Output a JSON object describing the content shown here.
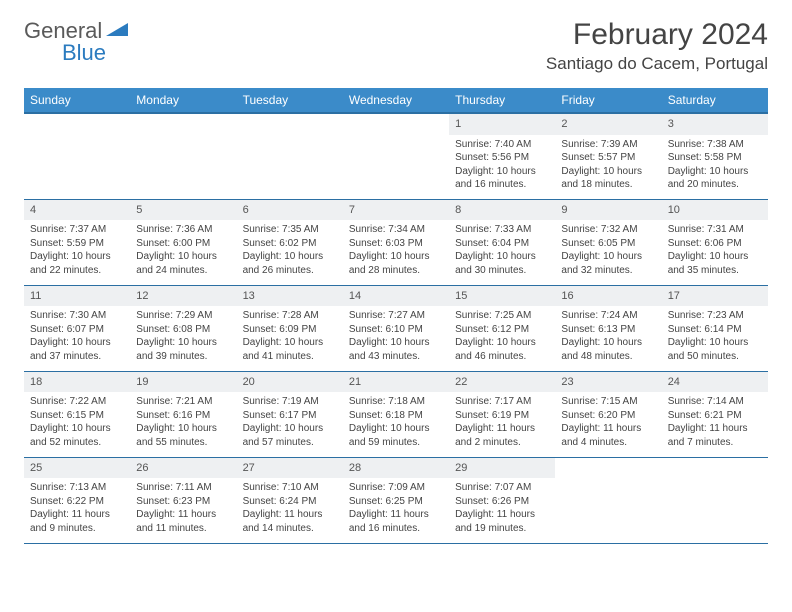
{
  "logo": {
    "general": "General",
    "blue": "Blue"
  },
  "title": "February 2024",
  "location": "Santiago do Cacem, Portugal",
  "weekdays": [
    "Sunday",
    "Monday",
    "Tuesday",
    "Wednesday",
    "Thursday",
    "Friday",
    "Saturday"
  ],
  "colors": {
    "header_bg": "#3b8bc9",
    "header_border": "#2b6fa3",
    "daynum_bg": "#eef0f2",
    "logo_blue": "#2b7bbf",
    "logo_gray": "#5a5a5a"
  },
  "weeks": [
    [
      null,
      null,
      null,
      null,
      {
        "n": "1",
        "sunrise": "Sunrise: 7:40 AM",
        "sunset": "Sunset: 5:56 PM",
        "daylight": "Daylight: 10 hours and 16 minutes."
      },
      {
        "n": "2",
        "sunrise": "Sunrise: 7:39 AM",
        "sunset": "Sunset: 5:57 PM",
        "daylight": "Daylight: 10 hours and 18 minutes."
      },
      {
        "n": "3",
        "sunrise": "Sunrise: 7:38 AM",
        "sunset": "Sunset: 5:58 PM",
        "daylight": "Daylight: 10 hours and 20 minutes."
      }
    ],
    [
      {
        "n": "4",
        "sunrise": "Sunrise: 7:37 AM",
        "sunset": "Sunset: 5:59 PM",
        "daylight": "Daylight: 10 hours and 22 minutes."
      },
      {
        "n": "5",
        "sunrise": "Sunrise: 7:36 AM",
        "sunset": "Sunset: 6:00 PM",
        "daylight": "Daylight: 10 hours and 24 minutes."
      },
      {
        "n": "6",
        "sunrise": "Sunrise: 7:35 AM",
        "sunset": "Sunset: 6:02 PM",
        "daylight": "Daylight: 10 hours and 26 minutes."
      },
      {
        "n": "7",
        "sunrise": "Sunrise: 7:34 AM",
        "sunset": "Sunset: 6:03 PM",
        "daylight": "Daylight: 10 hours and 28 minutes."
      },
      {
        "n": "8",
        "sunrise": "Sunrise: 7:33 AM",
        "sunset": "Sunset: 6:04 PM",
        "daylight": "Daylight: 10 hours and 30 minutes."
      },
      {
        "n": "9",
        "sunrise": "Sunrise: 7:32 AM",
        "sunset": "Sunset: 6:05 PM",
        "daylight": "Daylight: 10 hours and 32 minutes."
      },
      {
        "n": "10",
        "sunrise": "Sunrise: 7:31 AM",
        "sunset": "Sunset: 6:06 PM",
        "daylight": "Daylight: 10 hours and 35 minutes."
      }
    ],
    [
      {
        "n": "11",
        "sunrise": "Sunrise: 7:30 AM",
        "sunset": "Sunset: 6:07 PM",
        "daylight": "Daylight: 10 hours and 37 minutes."
      },
      {
        "n": "12",
        "sunrise": "Sunrise: 7:29 AM",
        "sunset": "Sunset: 6:08 PM",
        "daylight": "Daylight: 10 hours and 39 minutes."
      },
      {
        "n": "13",
        "sunrise": "Sunrise: 7:28 AM",
        "sunset": "Sunset: 6:09 PM",
        "daylight": "Daylight: 10 hours and 41 minutes."
      },
      {
        "n": "14",
        "sunrise": "Sunrise: 7:27 AM",
        "sunset": "Sunset: 6:10 PM",
        "daylight": "Daylight: 10 hours and 43 minutes."
      },
      {
        "n": "15",
        "sunrise": "Sunrise: 7:25 AM",
        "sunset": "Sunset: 6:12 PM",
        "daylight": "Daylight: 10 hours and 46 minutes."
      },
      {
        "n": "16",
        "sunrise": "Sunrise: 7:24 AM",
        "sunset": "Sunset: 6:13 PM",
        "daylight": "Daylight: 10 hours and 48 minutes."
      },
      {
        "n": "17",
        "sunrise": "Sunrise: 7:23 AM",
        "sunset": "Sunset: 6:14 PM",
        "daylight": "Daylight: 10 hours and 50 minutes."
      }
    ],
    [
      {
        "n": "18",
        "sunrise": "Sunrise: 7:22 AM",
        "sunset": "Sunset: 6:15 PM",
        "daylight": "Daylight: 10 hours and 52 minutes."
      },
      {
        "n": "19",
        "sunrise": "Sunrise: 7:21 AM",
        "sunset": "Sunset: 6:16 PM",
        "daylight": "Daylight: 10 hours and 55 minutes."
      },
      {
        "n": "20",
        "sunrise": "Sunrise: 7:19 AM",
        "sunset": "Sunset: 6:17 PM",
        "daylight": "Daylight: 10 hours and 57 minutes."
      },
      {
        "n": "21",
        "sunrise": "Sunrise: 7:18 AM",
        "sunset": "Sunset: 6:18 PM",
        "daylight": "Daylight: 10 hours and 59 minutes."
      },
      {
        "n": "22",
        "sunrise": "Sunrise: 7:17 AM",
        "sunset": "Sunset: 6:19 PM",
        "daylight": "Daylight: 11 hours and 2 minutes."
      },
      {
        "n": "23",
        "sunrise": "Sunrise: 7:15 AM",
        "sunset": "Sunset: 6:20 PM",
        "daylight": "Daylight: 11 hours and 4 minutes."
      },
      {
        "n": "24",
        "sunrise": "Sunrise: 7:14 AM",
        "sunset": "Sunset: 6:21 PM",
        "daylight": "Daylight: 11 hours and 7 minutes."
      }
    ],
    [
      {
        "n": "25",
        "sunrise": "Sunrise: 7:13 AM",
        "sunset": "Sunset: 6:22 PM",
        "daylight": "Daylight: 11 hours and 9 minutes."
      },
      {
        "n": "26",
        "sunrise": "Sunrise: 7:11 AM",
        "sunset": "Sunset: 6:23 PM",
        "daylight": "Daylight: 11 hours and 11 minutes."
      },
      {
        "n": "27",
        "sunrise": "Sunrise: 7:10 AM",
        "sunset": "Sunset: 6:24 PM",
        "daylight": "Daylight: 11 hours and 14 minutes."
      },
      {
        "n": "28",
        "sunrise": "Sunrise: 7:09 AM",
        "sunset": "Sunset: 6:25 PM",
        "daylight": "Daylight: 11 hours and 16 minutes."
      },
      {
        "n": "29",
        "sunrise": "Sunrise: 7:07 AM",
        "sunset": "Sunset: 6:26 PM",
        "daylight": "Daylight: 11 hours and 19 minutes."
      },
      null,
      null
    ]
  ]
}
